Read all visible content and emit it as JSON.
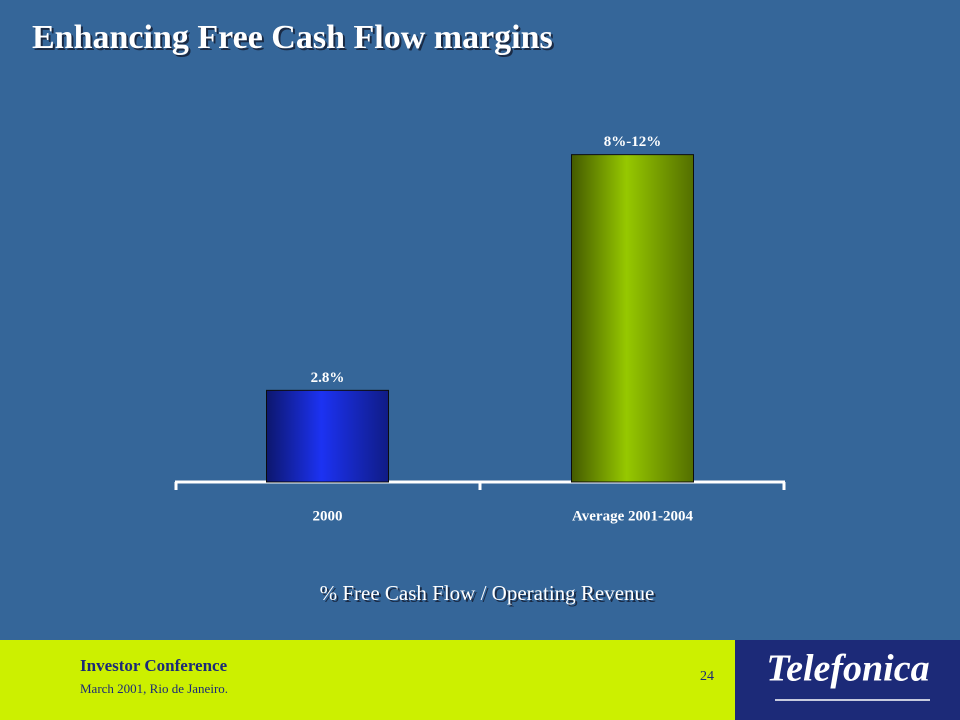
{
  "chart_data": {
    "type": "bar",
    "title": "Enhancing  Free Cash Flow margins",
    "categories": [
      "2000",
      "Average 2001-2004"
    ],
    "values": [
      2.8,
      10
    ],
    "value_labels": [
      "2.8%",
      "8%-12%"
    ],
    "colors": [
      "#1c32f2",
      "#96c800"
    ],
    "x_label": "% Free Cash Flow / Operating Revenue"
  },
  "footer": {
    "title": "Investor Conference",
    "subtitle": "March 2001, Rio de Janeiro.",
    "page_number": "24",
    "logo": "Telefonica"
  }
}
